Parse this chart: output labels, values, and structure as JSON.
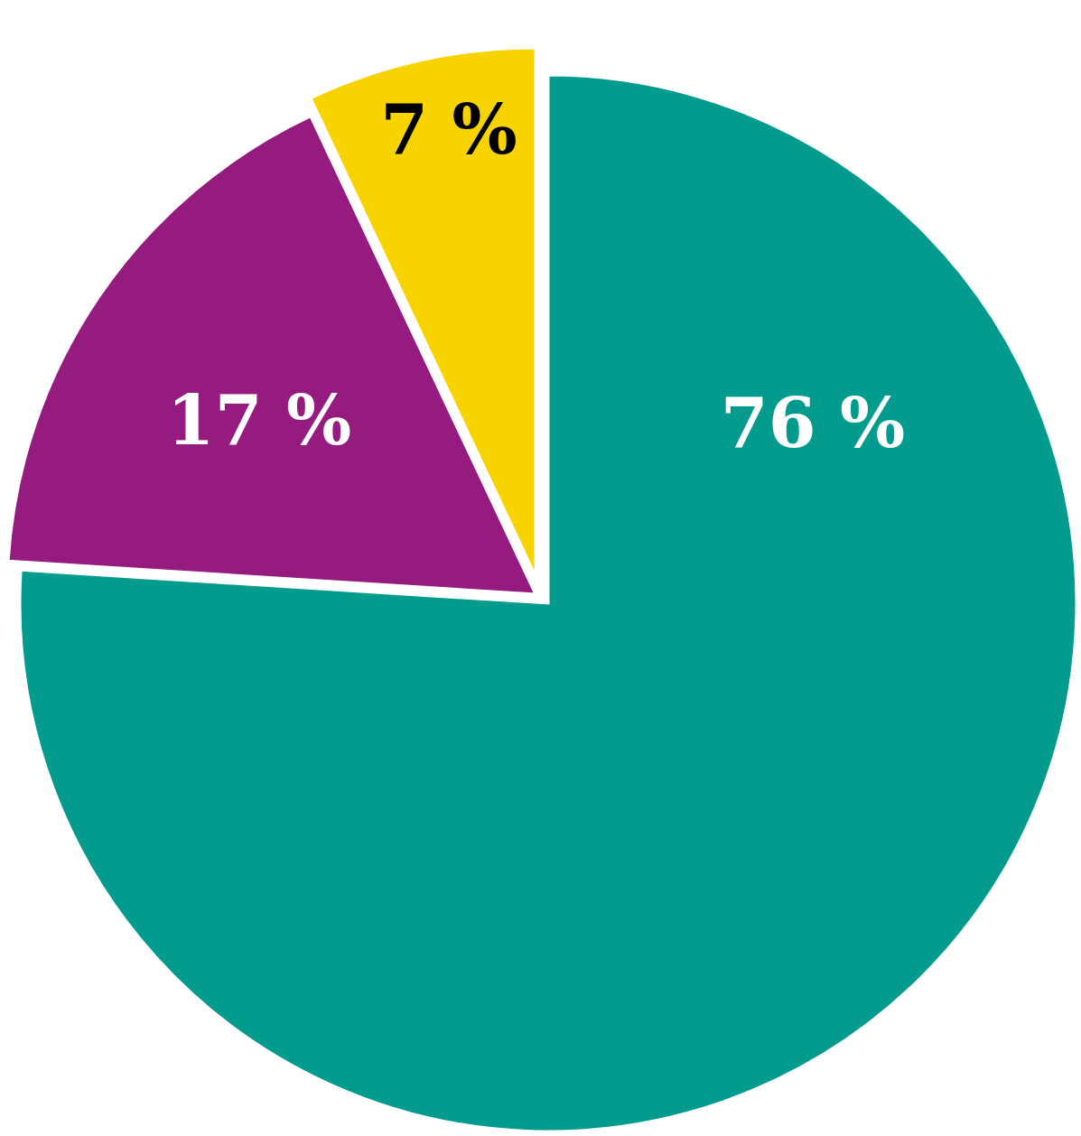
{
  "chart_data": {
    "type": "pie",
    "categories": [
      null,
      null,
      null
    ],
    "values": [
      76,
      17,
      7
    ],
    "colors": [
      "#029b8e",
      "#951c7e",
      "#f7d300"
    ],
    "value_labels": [
      "76 %",
      "17 %",
      "7 %"
    ]
  }
}
